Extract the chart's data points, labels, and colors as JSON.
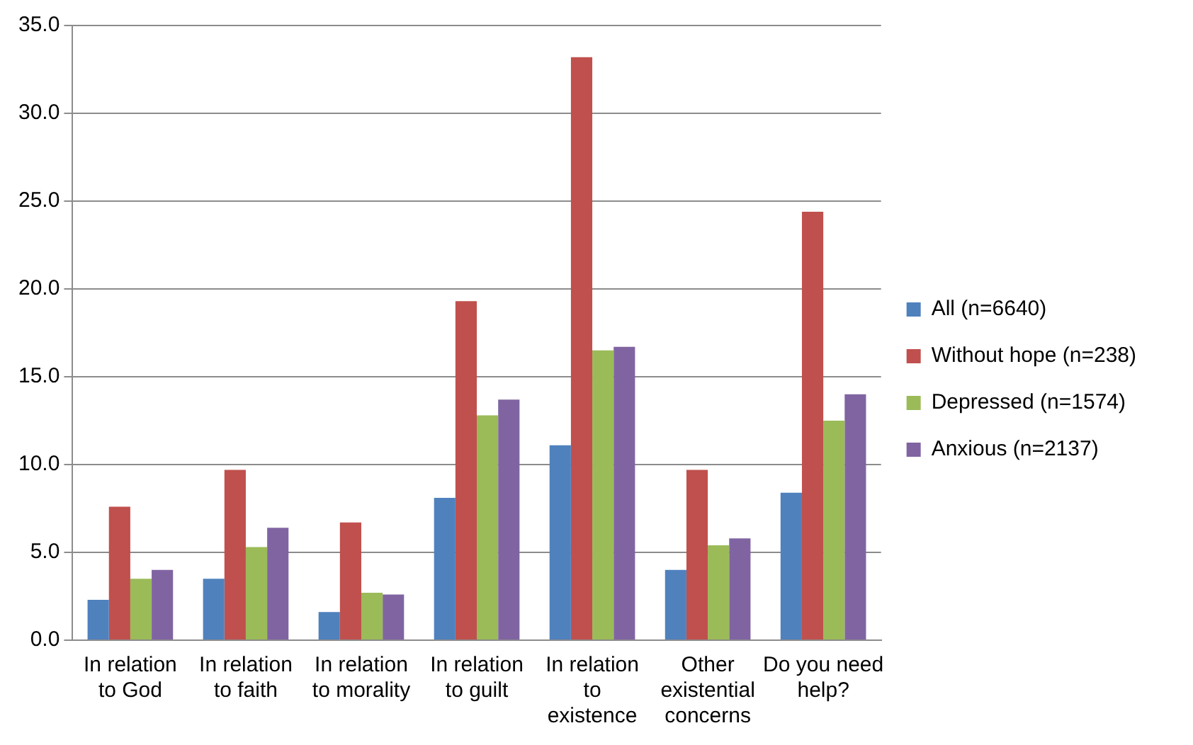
{
  "chart_data": {
    "type": "bar",
    "categories": [
      "In relation to God",
      "In relation to faith",
      "In relation to morality",
      "In relation to guilt",
      "In relation to existence",
      "Other existential concerns",
      "Do you need help?"
    ],
    "series": [
      {
        "name": "All (n=6640)",
        "color": "#4f81bd",
        "values": [
          2.3,
          3.5,
          1.6,
          8.1,
          11.1,
          4.0,
          8.4
        ]
      },
      {
        "name": "Without hope (n=238)",
        "color": "#c0504d",
        "values": [
          7.6,
          9.7,
          6.7,
          19.3,
          33.2,
          9.7,
          24.4
        ]
      },
      {
        "name": "Depressed (n=1574)",
        "color": "#9bbb59",
        "values": [
          3.5,
          5.3,
          2.7,
          12.8,
          16.5,
          5.4,
          12.5
        ]
      },
      {
        "name": "Anxious (n=2137)",
        "color": "#8064a2",
        "values": [
          4.0,
          6.4,
          2.6,
          13.7,
          16.7,
          5.8,
          14.0
        ]
      }
    ],
    "ylim": [
      0,
      35
    ],
    "yticks": [
      {
        "value": 0,
        "label": "0.0"
      },
      {
        "value": 5,
        "label": "5.0"
      },
      {
        "value": 10,
        "label": "10.0"
      },
      {
        "value": 15,
        "label": "15.0"
      },
      {
        "value": 20,
        "label": "20.0"
      },
      {
        "value": 25,
        "label": "25.0"
      },
      {
        "value": 30,
        "label": "30.0"
      },
      {
        "value": 35,
        "label": "35.0"
      }
    ],
    "grid": "y",
    "legend": "right"
  }
}
